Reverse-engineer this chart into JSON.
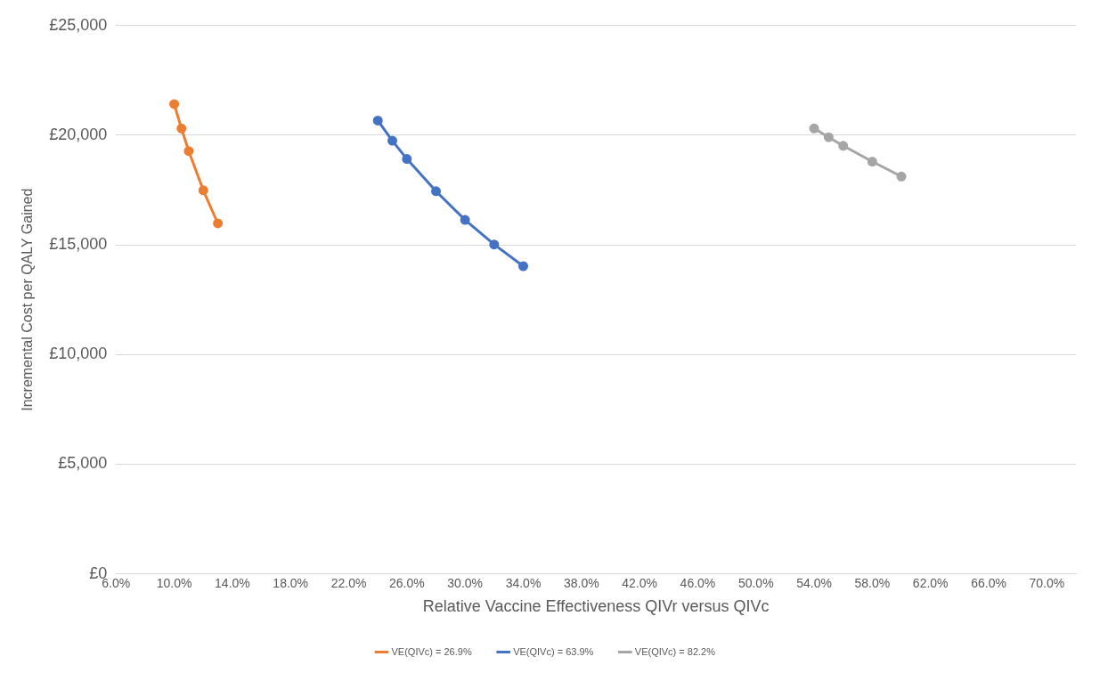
{
  "chart_data": {
    "type": "line",
    "xlabel": "Relative Vaccine Effectiveness QIVr versus QIVc",
    "ylabel": "Incremental Cost per QALY Gained",
    "xlim": [
      6,
      72
    ],
    "xticks": [
      {
        "value": 6,
        "label": "6.0%"
      },
      {
        "value": 10,
        "label": "10.0%"
      },
      {
        "value": 14,
        "label": "14.0%"
      },
      {
        "value": 18,
        "label": "18.0%"
      },
      {
        "value": 22,
        "label": "22.0%"
      },
      {
        "value": 26,
        "label": "26.0%"
      },
      {
        "value": 30,
        "label": "30.0%"
      },
      {
        "value": 34,
        "label": "34.0%"
      },
      {
        "value": 38,
        "label": "38.0%"
      },
      {
        "value": 42,
        "label": "42.0%"
      },
      {
        "value": 46,
        "label": "46.0%"
      },
      {
        "value": 50,
        "label": "50.0%"
      },
      {
        "value": 54,
        "label": "54.0%"
      },
      {
        "value": 58,
        "label": "58.0%"
      },
      {
        "value": 62,
        "label": "62.0%"
      },
      {
        "value": 66,
        "label": "66.0%"
      },
      {
        "value": 70,
        "label": "70.0%"
      }
    ],
    "ylim": [
      0,
      25000
    ],
    "yticks": [
      {
        "value": 0,
        "label": "£0"
      },
      {
        "value": 5000,
        "label": "£5,000"
      },
      {
        "value": 10000,
        "label": "£10,000"
      },
      {
        "value": 15000,
        "label": "£15,000"
      },
      {
        "value": 20000,
        "label": "£20,000"
      },
      {
        "value": 25000,
        "label": "£25,000"
      }
    ],
    "grid": "y",
    "legend": "bottom",
    "marker": "circle",
    "line_style": "solid",
    "series": [
      {
        "name": "VE(QIVc) = 26.9%",
        "color": "#ed7d31",
        "x": [
          10,
          10.5,
          11,
          12,
          13
        ],
        "values": [
          21420,
          20310,
          19280,
          17490,
          15980
        ]
      },
      {
        "name": "VE(QIVc) = 63.9%",
        "color": "#4472c4",
        "x": [
          24,
          25,
          26,
          28,
          30,
          32,
          34
        ],
        "values": [
          20670,
          19750,
          18920,
          17450,
          16140,
          15020,
          14030
        ]
      },
      {
        "name": "VE(QIVc) = 82.2%",
        "color": "#a5a5a5",
        "x": [
          54,
          55,
          56,
          58,
          60
        ],
        "values": [
          20310,
          19910,
          19520,
          18800,
          18120
        ]
      }
    ]
  }
}
